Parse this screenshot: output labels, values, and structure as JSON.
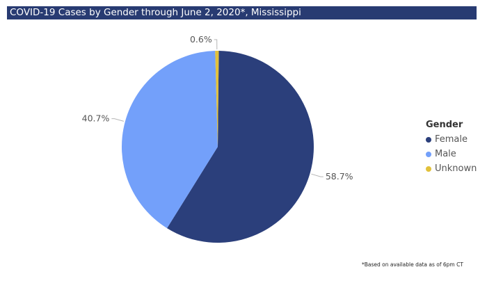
{
  "header": {
    "title": "COVID-19 Cases by Gender through June 2, 2020*, Mississippi"
  },
  "chart_data": {
    "type": "pie",
    "categories": [
      "Female",
      "Male",
      "Unknown"
    ],
    "values": [
      58.7,
      40.7,
      0.6
    ],
    "data_labels": [
      "58.7%",
      "40.7%",
      "0.6%"
    ],
    "colors": [
      "#2b3f7b",
      "#73a0fa",
      "#e2c13b"
    ],
    "legend": {
      "title": "Gender",
      "placement": "right"
    }
  },
  "footnote": "*Based on available data as of 6pm CT"
}
